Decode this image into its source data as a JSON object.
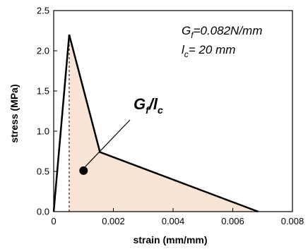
{
  "chart_data": {
    "type": "line",
    "xlabel": "strain (mm/mm)",
    "ylabel": "stress (MPa)",
    "xlim": [
      0,
      0.008
    ],
    "ylim": [
      0,
      2.5
    ],
    "x_ticks": [
      0,
      0.002,
      0.004,
      0.006,
      0.008
    ],
    "x_tick_labels": [
      "0",
      "0.002",
      "0.004",
      "0.006",
      "0.008"
    ],
    "y_ticks": [
      0,
      0.5,
      1.0,
      1.5,
      2.0,
      2.5
    ],
    "y_tick_labels": [
      "0.0",
      "0.5",
      "1.0",
      "1.5",
      "2.0",
      "2.5"
    ],
    "grid": false,
    "series": [
      {
        "x": [
          0,
          0.00052,
          0.00155,
          0.00685
        ],
        "y": [
          0,
          2.2,
          0.74,
          0
        ]
      }
    ],
    "peak_drop_line": {
      "x": 0.00052,
      "y_from": 0,
      "y_to": 2.2,
      "style": "dashed"
    },
    "shaded_region": {
      "vertices": [
        [
          0.00052,
          0
        ],
        [
          0.00052,
          2.2
        ],
        [
          0.00155,
          0.74
        ],
        [
          0.00685,
          0
        ]
      ],
      "color": "#f9e4d6"
    },
    "marker_point": {
      "x": 0.001,
      "y": 0.51
    },
    "annotations": {
      "gf_symbol": "G",
      "gf_subscript": "f",
      "gf_value": "=0.082N/mm",
      "lc_symbol": "l",
      "lc_subscript": "c",
      "lc_value": "= 20 mm",
      "ratio_num": "G",
      "ratio_num_sub": "f",
      "ratio_slash": "/",
      "ratio_den": "l",
      "ratio_den_sub": "c"
    },
    "colors": {
      "line": "#000000",
      "fill": "#f9e4d6"
    }
  }
}
